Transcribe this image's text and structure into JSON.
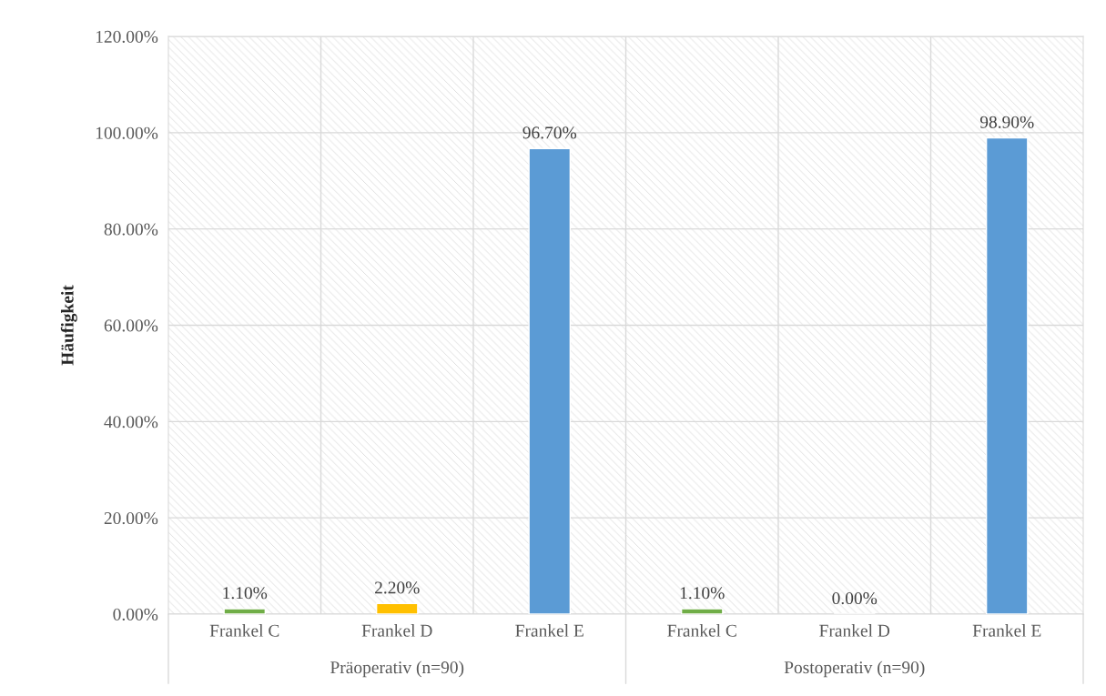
{
  "chart_data": {
    "type": "bar",
    "ylabel": "Häufigkeit",
    "categories": [
      "Frankel C",
      "Frankel D",
      "Frankel E",
      "Frankel C",
      "Frankel D",
      "Frankel E"
    ],
    "values": [
      1.1,
      2.2,
      96.7,
      1.1,
      0,
      98.9
    ],
    "colors": [
      "#70ad47",
      "#ffc000",
      "#5b9bd5",
      "#70ad47",
      null,
      "#5b9bd5"
    ],
    "value_labels": [
      "1.10%",
      "2.20%",
      "96.70%",
      "1.10%",
      "0.00%",
      "98.90%"
    ],
    "ylim": [
      0,
      120
    ],
    "yticks": [
      {
        "value": 0,
        "label": "0.00%"
      },
      {
        "value": 20,
        "label": "20.00%"
      },
      {
        "value": 40,
        "label": "40.00%"
      },
      {
        "value": 60,
        "label": "60.00%"
      },
      {
        "value": 80,
        "label": "80.00%"
      },
      {
        "value": 100,
        "label": "100.00%"
      },
      {
        "value": 120,
        "label": "120.00%"
      }
    ],
    "grid": true,
    "annotations": [
      "Präoperativ (n=90)",
      "Postoperativ (n=90)"
    ]
  }
}
